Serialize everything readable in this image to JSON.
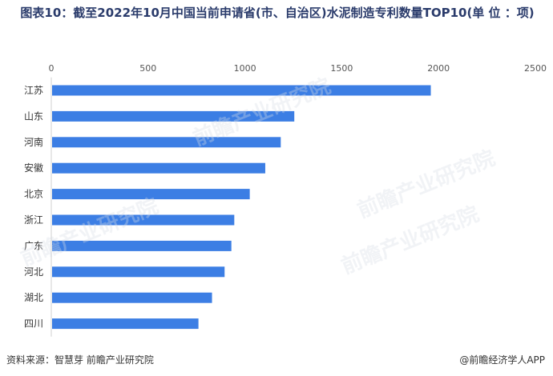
{
  "header": {
    "title": "图表10：截至2022年10月中国当前申请省(市、自治区)水泥制造专利数量TOP10(单 位 ：项)"
  },
  "footer": {
    "source": "资料来源：智慧芽 前瞻产业研究院",
    "brand": "@前瞻经济学人APP"
  },
  "watermark": {
    "text": "前瞻产业研究院"
  },
  "chart_data": {
    "type": "bar",
    "orientation": "horizontal",
    "categories": [
      "江苏",
      "山东",
      "河南",
      "安徽",
      "北京",
      "浙江",
      "广东",
      "河北",
      "湖北",
      "四川"
    ],
    "values": [
      1960,
      1255,
      1185,
      1105,
      1025,
      945,
      930,
      895,
      830,
      760
    ],
    "xlim": [
      0,
      2500
    ],
    "xticks": [
      0,
      500,
      1000,
      1500,
      2000,
      2500
    ],
    "xaxis_position": "top",
    "grid": false,
    "bar_color": "#3c7ee4"
  }
}
